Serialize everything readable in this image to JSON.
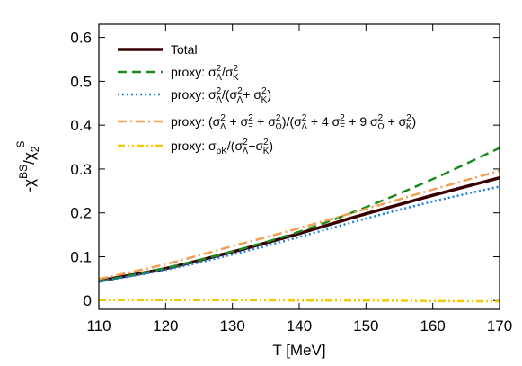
{
  "chart_data": {
    "type": "line",
    "xlabel": "T [MeV]",
    "ylabel": {
      "main": "-χ",
      "sup1": "BS",
      "slash": "/χ",
      "sub2": "2",
      "sup2": "S"
    },
    "xlim": [
      110,
      170
    ],
    "ylim": [
      -0.02,
      0.63
    ],
    "xticks": [
      110,
      120,
      130,
      140,
      150,
      160,
      170
    ],
    "yticks": [
      0,
      0.1,
      0.2,
      0.3,
      0.4,
      0.5,
      0.6
    ],
    "xtick_labels": [
      "110",
      "120",
      "130",
      "140",
      "150",
      "160",
      "170"
    ],
    "ytick_labels": [
      "0",
      "0.1",
      "0.2",
      "0.3",
      "0.4",
      "0.5",
      "0.6"
    ],
    "grid": false,
    "legend_position": "top-left",
    "series": [
      {
        "name": "Total",
        "color": "#3a0000",
        "style": "solid",
        "x": [
          110,
          120,
          130,
          140,
          150,
          160,
          170
        ],
        "y": [
          0.045,
          0.073,
          0.111,
          0.153,
          0.198,
          0.24,
          0.28
        ]
      },
      {
        "name": "proxy: σ_Λ²/σ_K²",
        "color": "#1a8a1a",
        "style": "dashed",
        "x": [
          110,
          120,
          130,
          140,
          150,
          160,
          170
        ],
        "y": [
          0.043,
          0.074,
          0.112,
          0.157,
          0.213,
          0.277,
          0.348
        ]
      },
      {
        "name": "proxy: σ_Λ²/(σ_Λ²+ σ_K²)",
        "color": "#1e80e0",
        "style": "dotted",
        "x": [
          110,
          120,
          130,
          140,
          150,
          160,
          170
        ],
        "y": [
          0.043,
          0.07,
          0.105,
          0.145,
          0.187,
          0.226,
          0.26
        ]
      },
      {
        "name": "proxy: (σ_Λ² + σ_Ξ² + σ_Ω²)/(σ_Λ² + 4 σ_Ξ² + 9 σ_Ω² + σ_K²)",
        "color": "#f0a050",
        "style": "dashdot",
        "x": [
          110,
          120,
          130,
          140,
          150,
          160,
          170
        ],
        "y": [
          0.049,
          0.083,
          0.124,
          0.165,
          0.209,
          0.253,
          0.296
        ]
      },
      {
        "name": "proxy: σ_pK/(σ_Λ²+σ_K²)",
        "color": "#f5c800",
        "style": "dashdotdot",
        "x": [
          110,
          120,
          130,
          140,
          150,
          160,
          170
        ],
        "y": [
          0.001,
          0.001,
          0.001,
          0.0,
          0.0,
          -0.001,
          -0.002
        ]
      }
    ]
  }
}
